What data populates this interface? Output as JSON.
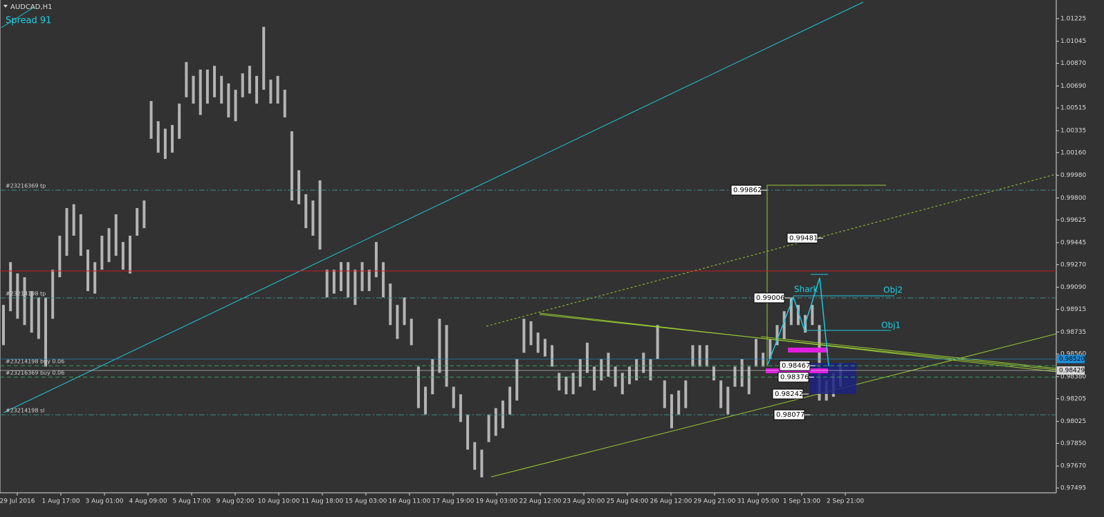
{
  "chart_data": {
    "type": "range",
    "title": "AUDCAD,H1",
    "subtitle": "Spread 91",
    "color": "#b4b4b4",
    "categories": [
      "29 Jul 2016",
      "1 Aug 17:00",
      "3 Aug 01:00",
      "4 Aug 09:00",
      "5 Aug 17:00",
      "9 Aug 02:00",
      "10 Aug 10:00",
      "11 Aug 18:00",
      "15 Aug 03:00",
      "16 Aug 11:00",
      "17 Aug 19:00",
      "19 Aug 03:00",
      "22 Aug 12:00",
      "23 Aug 20:00",
      "25 Aug 04:00",
      "26 Aug 12:00",
      "29 Aug 21:00",
      "31 Aug 05:00",
      "1 Sep 13:00",
      "2 Sep 21:00"
    ],
    "high": [
      0.9895,
      0.9929,
      0.992,
      0.9917,
      0.9906,
      0.9901,
      0.9901,
      0.9923,
      0.995,
      0.9972,
      0.9975,
      0.9967,
      0.9939,
      0.9929,
      0.995,
      0.9956,
      0.9967,
      0.9945,
      0.995,
      0.9972,
      0.9978,
      1.0057,
      1.0041,
      1.0035,
      1.0038,
      1.0055,
      1.0088,
      1.0077,
      1.0082,
      1.0082,
      1.0085,
      1.0077,
      1.0071,
      1.0066,
      1.0079,
      1.0085,
      1.0077,
      1.0116,
      1.0074,
      1.0077,
      1.0066,
      1.0033,
      1.0002,
      0.9983,
      0.9978,
      0.9994,
      0.9923,
      0.9923,
      0.9929,
      0.9929,
      0.9923,
      0.9929,
      0.9923,
      0.9945,
      0.9929,
      0.9912,
      0.9895,
      0.9901,
      0.9884,
      0.9846,
      0.983,
      0.9852,
      0.9884,
      0.9879,
      0.983,
      0.9824,
      0.9808,
      0.9786,
      0.978,
      0.9808,
      0.9813,
      0.9819,
      0.983,
      0.9852,
      0.9884,
      0.9882,
      0.9873,
      0.9868,
      0.9863,
      0.9841,
      0.9838,
      0.9841,
      0.9852,
      0.9865,
      0.9846,
      0.9852,
      0.9857,
      0.9846,
      0.9841,
      0.9846,
      0.9852,
      0.9857,
      0.9852,
      0.9879,
      0.9835,
      0.9824,
      0.9827,
      0.9835,
      0.9863,
      0.9863,
      0.9863,
      0.9846,
      0.9835,
      0.983,
      0.9846,
      0.9852,
      0.9846,
      0.9868,
      0.9857,
      0.9868,
      0.9879,
      0.989,
      0.9901,
      0.9895,
      0.9887,
      0.9895,
      0.9879,
      0.9835,
      0.9841,
      0.9849
    ],
    "low": [
      0.9863,
      0.989,
      0.9884,
      0.9879,
      0.9873,
      0.9868,
      0.9846,
      0.9884,
      0.9917,
      0.9934,
      0.995,
      0.9934,
      0.9906,
      0.9904,
      0.9923,
      0.9929,
      0.9934,
      0.9923,
      0.992,
      0.995,
      0.9956,
      1.0027,
      1.0016,
      1.0011,
      1.0016,
      1.0027,
      1.006,
      1.0055,
      1.0046,
      1.0055,
      1.006,
      1.0055,
      1.0044,
      1.0041,
      1.006,
      1.0063,
      1.0055,
      1.0066,
      1.0055,
      1.0055,
      1.0044,
      0.9978,
      0.9975,
      0.9956,
      0.995,
      0.9939,
      0.9901,
      0.9904,
      0.9906,
      0.9901,
      0.9895,
      0.9906,
      0.9906,
      0.9917,
      0.9901,
      0.9879,
      0.9868,
      0.9879,
      0.9863,
      0.9813,
      0.9808,
      0.9824,
      0.9841,
      0.983,
      0.9813,
      0.9802,
      0.978,
      0.9764,
      0.9758,
      0.9786,
      0.9791,
      0.9797,
      0.9808,
      0.9819,
      0.9857,
      0.9863,
      0.9857,
      0.9854,
      0.9846,
      0.9827,
      0.9824,
      0.9824,
      0.983,
      0.9841,
      0.9827,
      0.9835,
      0.9838,
      0.983,
      0.9824,
      0.9832,
      0.9835,
      0.9841,
      0.9835,
      0.9852,
      0.9813,
      0.9797,
      0.9808,
      0.9813,
      0.9846,
      0.9846,
      0.9846,
      0.9835,
      0.9813,
      0.9808,
      0.983,
      0.983,
      0.9824,
      0.9846,
      0.9846,
      0.9852,
      0.9863,
      0.9868,
      0.9879,
      0.9879,
      0.9873,
      0.9879,
      0.9819,
      0.9819,
      0.9822,
      0.983
    ],
    "ylim": [
      0.97457,
      1.01373
    ],
    "yticks": [
      1.01225,
      1.01045,
      {
        "value": 1.0087,
        "label": "1.00870"
      },
      {
        "value": 1.0069,
        "label": "1.00690"
      },
      1.00515,
      1.00335,
      {
        "value": 1.0016,
        "label": "1.00160"
      },
      {
        "value": 0.9998,
        "label": "0.99980"
      },
      {
        "value": 0.998,
        "label": "0.99800"
      },
      0.99625,
      0.99445,
      {
        "value": 0.9927,
        "label": "0.99270"
      },
      {
        "value": 0.9909,
        "label": "0.99090"
      },
      0.98915,
      0.98735,
      {
        "value": 0.9856,
        "label": "0.98560"
      },
      {
        "value": 0.9838,
        "label": "0.98380"
      },
      0.98205,
      0.98025,
      {
        "value": 0.9785,
        "label": "0.97850"
      },
      {
        "value": 0.9767,
        "label": "0.97670"
      },
      0.97495
    ],
    "levels": [
      {
        "name": "#23216369 tp",
        "value": 0.99862,
        "color": "#3f8f8f",
        "style": "dashdot"
      },
      {
        "value": 0.9922,
        "color": "#c81e1e",
        "style": "solid"
      },
      {
        "name": "#23214198 tp",
        "value": 0.99006,
        "color": "#3f8f8f",
        "style": "dashdot"
      },
      {
        "name": "#23214198 buy 0.06",
        "value": 0.98467,
        "color": "#35a060",
        "style": "dash"
      },
      {
        "name": "#23216369 buy 0.06",
        "value": 0.98376,
        "color": "#35a060",
        "style": "dash"
      },
      {
        "name": "#23214198 sl",
        "value": 0.98077,
        "color": "#3f8f8f",
        "style": "dashdot"
      }
    ],
    "price_labels": [
      {
        "value": 0.9852,
        "label": "0.98520",
        "color": "#1e8fdc"
      },
      {
        "value": 0.98429,
        "label": "0.98429",
        "color": "#d8d8d8"
      }
    ],
    "level_labels": [
      0.99862,
      0.99481,
      0.99006,
      0.98467,
      0.98376,
      0.98242,
      0.98077
    ],
    "pattern": {
      "name": "Shark",
      "targets": [
        "Obj1",
        "Obj2"
      ]
    }
  }
}
